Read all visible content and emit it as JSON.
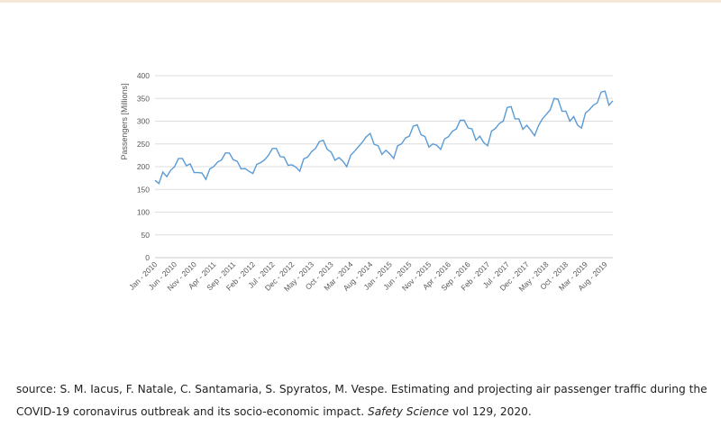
{
  "chart_data": {
    "type": "line",
    "ylabel": "Passengers [Millions]",
    "ylim": [
      0,
      400
    ],
    "yticks": [
      0,
      50,
      100,
      150,
      200,
      250,
      300,
      350,
      400
    ],
    "grid": "horizontal",
    "line_color": "#5b9bd5",
    "x_start": "2010-01",
    "x_end": "2019-12",
    "tick_labels": [
      "Jan - 2010",
      "Jun - 2010",
      "Nov - 2010",
      "Apr - 2011",
      "Sep - 2011",
      "Feb - 2012",
      "Jul - 2012",
      "Dec - 2012",
      "May - 2013",
      "Oct - 2013",
      "Mar - 2014",
      "Aug - 2014",
      "Jan - 2015",
      "Jun - 2015",
      "Nov - 2015",
      "Apr - 2016",
      "Sep - 2016",
      "Feb - 2017",
      "Jul - 2017",
      "Dec - 2017",
      "May - 2018",
      "Oct - 2018",
      "Mar - 2019",
      "Aug - 2019"
    ],
    "values": [
      170,
      163,
      188,
      178,
      192,
      200,
      218,
      218,
      202,
      206,
      187,
      187,
      186,
      172,
      195,
      200,
      210,
      215,
      230,
      230,
      215,
      212,
      195,
      196,
      190,
      185,
      205,
      209,
      215,
      225,
      240,
      240,
      222,
      221,
      203,
      204,
      199,
      190,
      217,
      221,
      233,
      240,
      255,
      258,
      238,
      232,
      214,
      220,
      212,
      200,
      225,
      234,
      244,
      254,
      266,
      273,
      249,
      246,
      227,
      236,
      228,
      218,
      246,
      250,
      263,
      267,
      289,
      292,
      270,
      266,
      243,
      250,
      247,
      238,
      261,
      266,
      278,
      283,
      302,
      302,
      285,
      283,
      258,
      267,
      253,
      246,
      278,
      284,
      295,
      300,
      330,
      332,
      305,
      305,
      282,
      291,
      280,
      268,
      290,
      305,
      315,
      325,
      350,
      348,
      322,
      322,
      300,
      310,
      291,
      285,
      318,
      325,
      335,
      340,
      364,
      366,
      335,
      345
    ]
  },
  "source": {
    "prefix": "source: S. M. Iacus, F. Natale, C. Santamaria, S. Spyratos, M. Vespe. Estimating and projecting air passenger traffic during the COVID-19 coronavirus outbreak and its socio-economic impact.",
    "journal": "Safety Science",
    "suffix": "vol 129, 2020."
  }
}
